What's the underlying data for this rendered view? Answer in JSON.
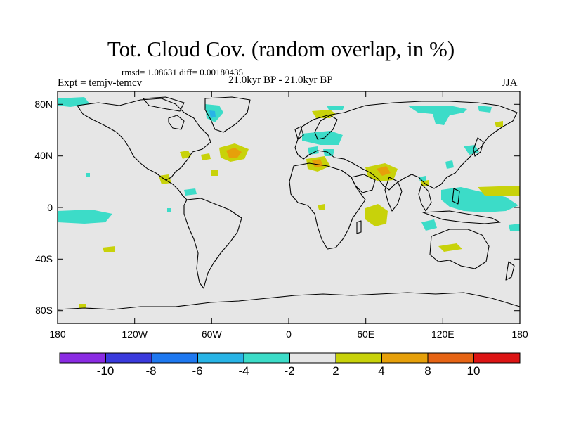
{
  "title": "Tot. Cloud Cov. (random overlap, in %)",
  "stats": "rmsd= 1.08631 diff= 0.00180435",
  "experiment": "Expt = temjv-temcv",
  "period": "21.0kyr BP - 21.0kyr BP",
  "season": "JJA",
  "x_ticks": [
    "180",
    "120W",
    "60W",
    "0",
    "60E",
    "120E",
    "180"
  ],
  "y_ticks": [
    "80N",
    "40N",
    "0",
    "40S",
    "80S"
  ],
  "colorbar": {
    "labels": [
      "-10",
      "-8",
      "-6",
      "-4",
      "-2",
      "2",
      "4",
      "8",
      "10"
    ],
    "colors": [
      "#8a2be2",
      "#3a3adc",
      "#1e78f0",
      "#28b4e6",
      "#3cdcc8",
      "#e6e6e6",
      "#c8d20a",
      "#e6a00a",
      "#e66414",
      "#dc1414"
    ]
  },
  "colors": {
    "background": "#e6e6e6",
    "coast": "#000000",
    "neg2": "#3cdcc8",
    "neg4": "#28b4e6",
    "pos2": "#c8d20a",
    "pos4": "#e6a00a"
  },
  "chart_data": {
    "type": "map",
    "projection": "cylindrical equidistant",
    "variable": "Total cloud cover difference (%)",
    "lon_range": [
      -180,
      180
    ],
    "lat_range": [
      -90,
      90
    ],
    "contour_levels": [
      -10,
      -8,
      -6,
      -4,
      -2,
      2,
      4,
      8,
      10
    ]
  }
}
